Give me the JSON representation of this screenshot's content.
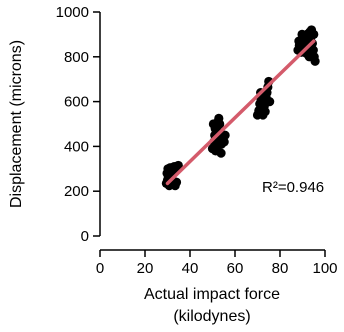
{
  "chart_data": {
    "type": "scatter",
    "xlabel_lines": [
      "Actual impact force",
      "(kilodynes)"
    ],
    "ylabel": "Displacement (microns)",
    "xlim": [
      0,
      100
    ],
    "ylim": [
      0,
      1000
    ],
    "xticks": [
      "0",
      "20",
      "40",
      "60",
      "80",
      "100"
    ],
    "yticks": [
      "0",
      "200",
      "400",
      "600",
      "800",
      "1000"
    ],
    "grid": false,
    "point_color": "#000000",
    "fit_color": "#d45b6b",
    "annotation": "R²=0.946",
    "fit_line": {
      "x": [
        30,
        95
      ],
      "y": [
        235,
        870
      ]
    },
    "points": [
      {
        "x": 29.5,
        "y": 235
      },
      {
        "x": 30.0,
        "y": 250
      },
      {
        "x": 30.4,
        "y": 265
      },
      {
        "x": 29.8,
        "y": 280
      },
      {
        "x": 30.6,
        "y": 295
      },
      {
        "x": 31.2,
        "y": 305
      },
      {
        "x": 31.8,
        "y": 290
      },
      {
        "x": 32.2,
        "y": 275
      },
      {
        "x": 31.0,
        "y": 260
      },
      {
        "x": 32.6,
        "y": 245
      },
      {
        "x": 33.4,
        "y": 225
      },
      {
        "x": 34.0,
        "y": 240
      },
      {
        "x": 34.5,
        "y": 300
      },
      {
        "x": 34.8,
        "y": 315
      },
      {
        "x": 33.0,
        "y": 310
      },
      {
        "x": 30.8,
        "y": 225
      },
      {
        "x": 32.0,
        "y": 230
      },
      {
        "x": 30.2,
        "y": 300
      },
      {
        "x": 50.0,
        "y": 390
      },
      {
        "x": 50.6,
        "y": 420
      },
      {
        "x": 51.0,
        "y": 450
      },
      {
        "x": 51.6,
        "y": 470
      },
      {
        "x": 52.0,
        "y": 490
      },
      {
        "x": 52.4,
        "y": 510
      },
      {
        "x": 52.8,
        "y": 525
      },
      {
        "x": 53.2,
        "y": 500
      },
      {
        "x": 53.6,
        "y": 460
      },
      {
        "x": 53.0,
        "y": 430
      },
      {
        "x": 52.2,
        "y": 400
      },
      {
        "x": 51.4,
        "y": 380
      },
      {
        "x": 54.0,
        "y": 410
      },
      {
        "x": 54.6,
        "y": 440
      },
      {
        "x": 55.2,
        "y": 420
      },
      {
        "x": 55.6,
        "y": 450
      },
      {
        "x": 53.8,
        "y": 370
      },
      {
        "x": 51.2,
        "y": 480
      },
      {
        "x": 50.4,
        "y": 500
      },
      {
        "x": 70.0,
        "y": 540
      },
      {
        "x": 70.6,
        "y": 560
      },
      {
        "x": 71.0,
        "y": 590
      },
      {
        "x": 71.6,
        "y": 610
      },
      {
        "x": 72.0,
        "y": 625
      },
      {
        "x": 72.6,
        "y": 600
      },
      {
        "x": 73.0,
        "y": 580
      },
      {
        "x": 73.4,
        "y": 555
      },
      {
        "x": 73.8,
        "y": 620
      },
      {
        "x": 74.2,
        "y": 640
      },
      {
        "x": 74.6,
        "y": 665
      },
      {
        "x": 75.0,
        "y": 690
      },
      {
        "x": 75.4,
        "y": 600
      },
      {
        "x": 71.4,
        "y": 640
      },
      {
        "x": 72.4,
        "y": 540
      },
      {
        "x": 88.0,
        "y": 830
      },
      {
        "x": 88.6,
        "y": 850
      },
      {
        "x": 89.0,
        "y": 870
      },
      {
        "x": 89.4,
        "y": 820
      },
      {
        "x": 90.0,
        "y": 880
      },
      {
        "x": 90.6,
        "y": 860
      },
      {
        "x": 91.0,
        "y": 840
      },
      {
        "x": 91.4,
        "y": 890
      },
      {
        "x": 92.0,
        "y": 900
      },
      {
        "x": 92.4,
        "y": 870
      },
      {
        "x": 92.8,
        "y": 850
      },
      {
        "x": 93.2,
        "y": 910
      },
      {
        "x": 93.6,
        "y": 880
      },
      {
        "x": 94.0,
        "y": 920
      },
      {
        "x": 94.4,
        "y": 860
      },
      {
        "x": 94.8,
        "y": 830
      },
      {
        "x": 95.2,
        "y": 800
      },
      {
        "x": 95.6,
        "y": 780
      },
      {
        "x": 93.0,
        "y": 800
      },
      {
        "x": 91.8,
        "y": 815
      },
      {
        "x": 89.8,
        "y": 900
      },
      {
        "x": 88.4,
        "y": 870
      },
      {
        "x": 95.0,
        "y": 900
      },
      {
        "x": 90.4,
        "y": 825
      }
    ]
  }
}
